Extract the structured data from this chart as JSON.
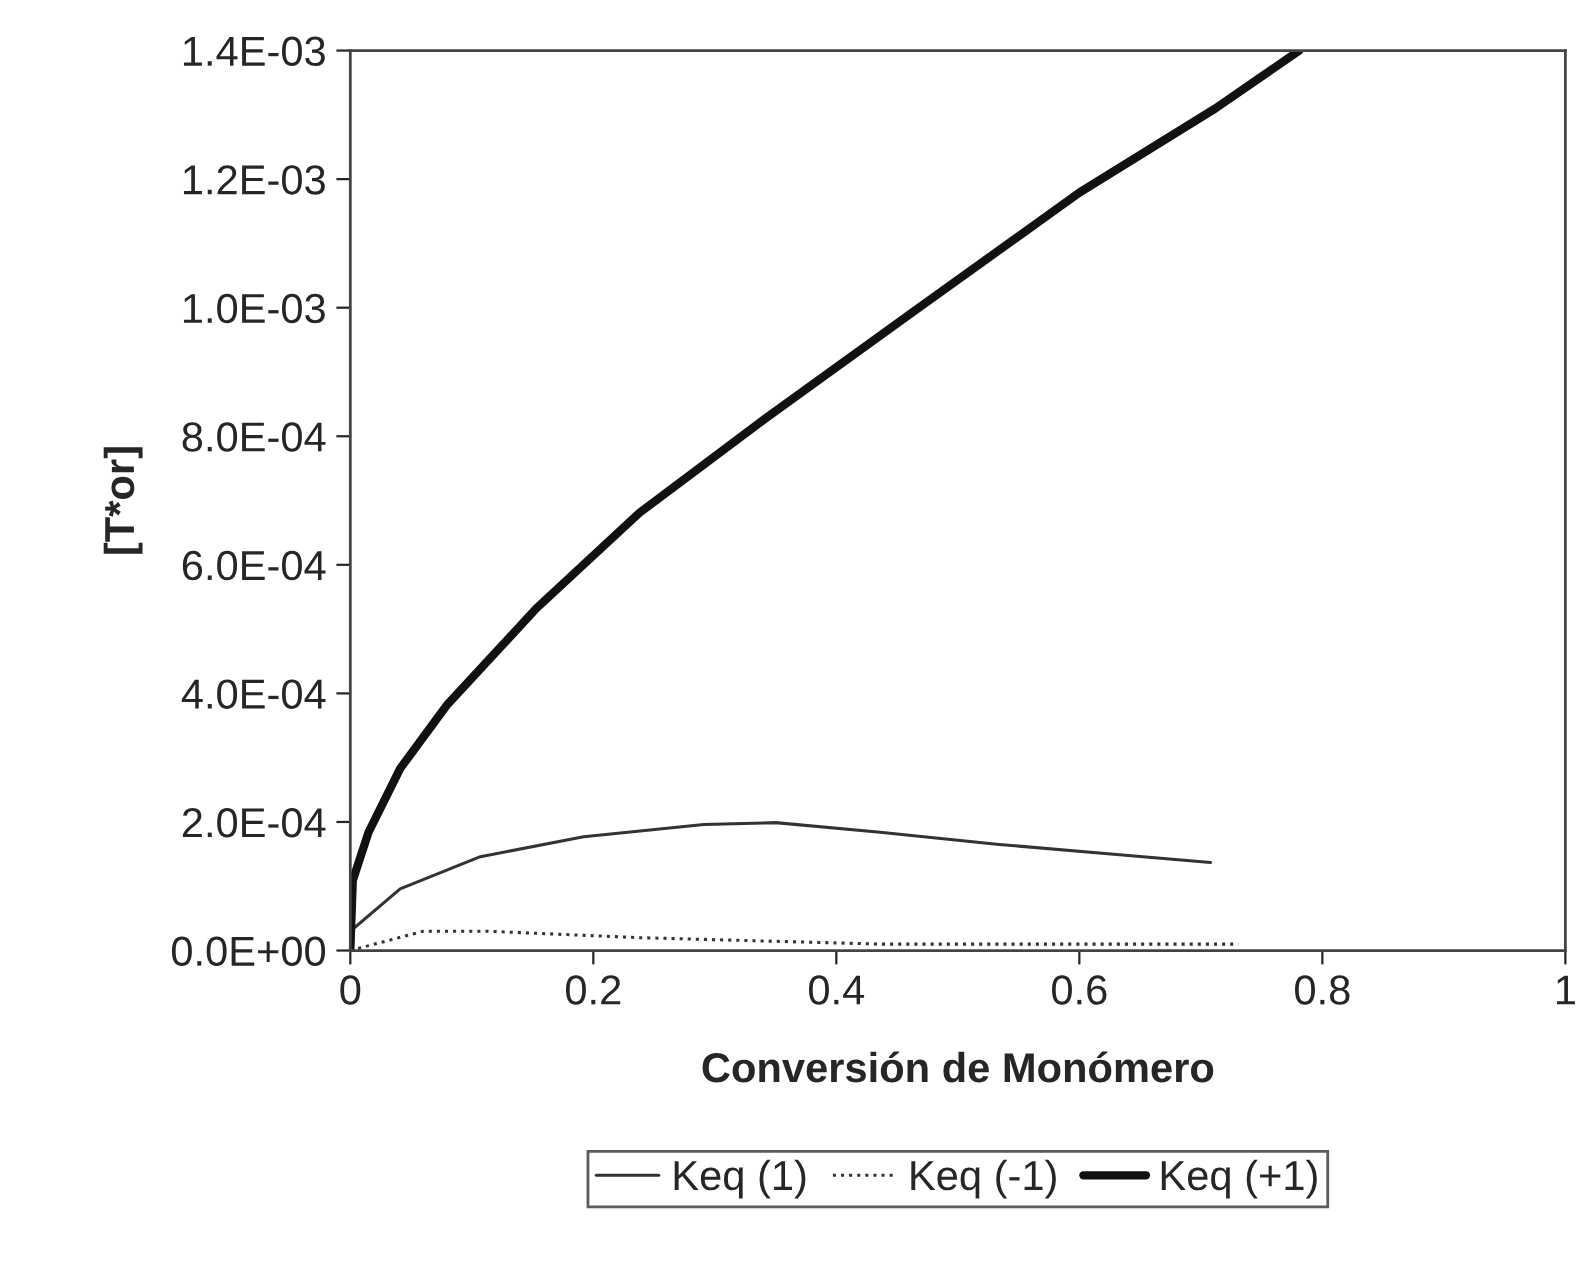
{
  "chart_data": {
    "type": "line",
    "xlabel": "Conversión de Monómero",
    "ylabel": "[T*or]",
    "xlim": [
      0,
      1
    ],
    "xticks": [
      0,
      0.2,
      0.4,
      0.6,
      0.8,
      1
    ],
    "ylim": [
      0,
      0.0014
    ],
    "yticks": [
      {
        "value": 0,
        "label": "0.0E+00"
      },
      {
        "value": 0.0002,
        "label": "2.0E-04"
      },
      {
        "value": 0.0004,
        "label": "4.0E-04"
      },
      {
        "value": 0.0006,
        "label": "6.0E-04"
      },
      {
        "value": 0.0008,
        "label": "8.0E-04"
      },
      {
        "value": 0.001,
        "label": "1.0E-03"
      },
      {
        "value": 0.0012,
        "label": "1.2E-03"
      },
      {
        "value": 0.0014,
        "label": "1.4E-03"
      }
    ],
    "grid": false,
    "legend": "bottom",
    "marker": "none",
    "series": [
      {
        "name": "Keq (1)",
        "color": "#333333",
        "line_style": "solid",
        "x": [
          0,
          0.041,
          0.107,
          0.192,
          0.291,
          0.35,
          0.436,
          0.534,
          0.633,
          0.708
        ],
        "values": [
          3e-05,
          9.6e-05,
          0.000146,
          0.000177,
          0.000196,
          0.000199,
          0.000184,
          0.000165,
          0.000149,
          0.000137
        ]
      },
      {
        "name": "Keq (-1)",
        "color": "#333333",
        "line_style": "dotted",
        "x": [
          0,
          0.06,
          0.113,
          0.238,
          0.436,
          0.731
        ],
        "values": [
          0,
          3e-05,
          3e-05,
          2e-05,
          1e-05,
          1e-05
        ]
      },
      {
        "name": "Keq (+1)",
        "color": "#111111",
        "line_style": "solid",
        "x": [
          0,
          0.002,
          0.015,
          0.041,
          0.08,
          0.153,
          0.238,
          0.344,
          0.462,
          0.6,
          0.712,
          0.781
        ],
        "values": [
          0,
          0.000109,
          0.000184,
          0.000283,
          0.000383,
          0.000532,
          0.000681,
          0.000831,
          0.000992,
          0.001179,
          0.00131,
          0.0014
        ]
      }
    ]
  }
}
